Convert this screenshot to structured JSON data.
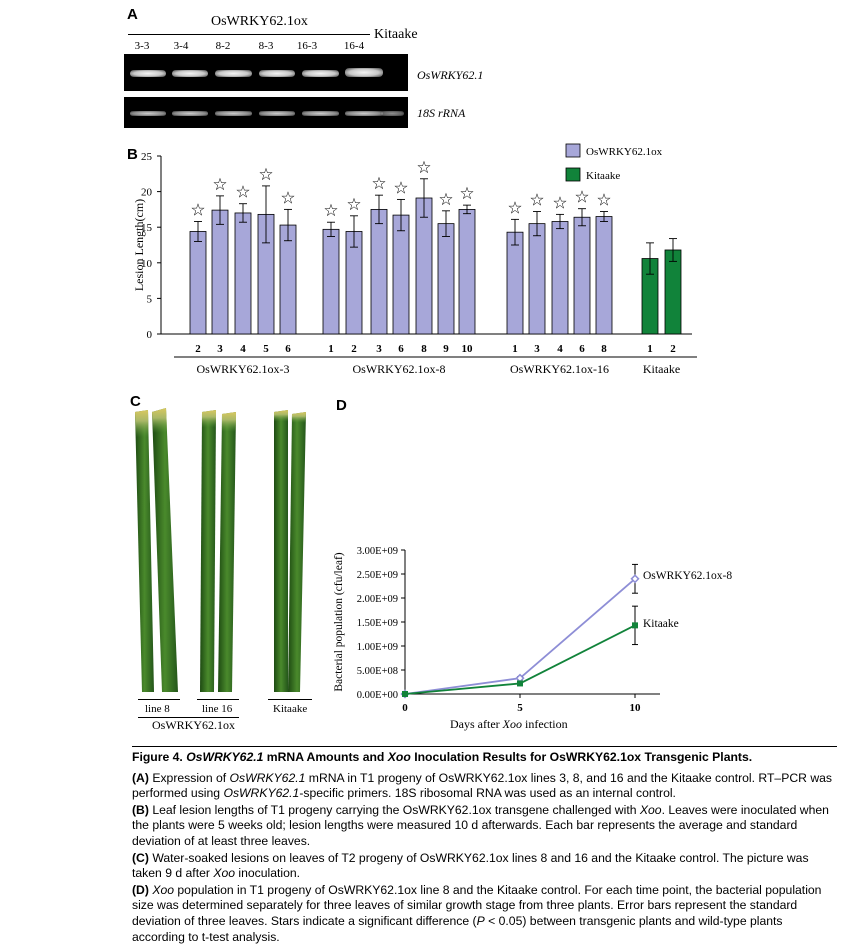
{
  "panels": {
    "a": "A",
    "b": "B",
    "c": "C",
    "d": "D"
  },
  "panel_a": {
    "group_label": "OsWRKY62.1ox",
    "lanes": [
      "3-3",
      "3-4",
      "8-2",
      "8-3",
      "16-3",
      "16-4"
    ],
    "control_label": "Kitaake",
    "gene_label": "OsWRKY62.1",
    "control_rna_label": "18S rRNA"
  },
  "panel_b": {
    "ylabel": "Lesion Length(cm)",
    "yticks": [
      "0",
      "5",
      "10",
      "15",
      "20",
      "25"
    ],
    "legend": [
      {
        "name": "OsWRKY62.1ox",
        "color": "#a7a7d9"
      },
      {
        "name": "Kitaake",
        "color": "#11833a"
      }
    ],
    "groups": [
      {
        "name": "OsWRKY62.1ox-3",
        "lines": [
          "2",
          "3",
          "4",
          "5",
          "6"
        ]
      },
      {
        "name": "OsWRKY62.1ox-8",
        "lines": [
          "1",
          "2",
          "3",
          "6",
          "8",
          "9",
          "10"
        ]
      },
      {
        "name": "OsWRKY62.1ox-16",
        "lines": [
          "1",
          "3",
          "4",
          "6",
          "8"
        ]
      },
      {
        "name": "Kitaake",
        "lines": [
          "1",
          "2"
        ]
      }
    ],
    "star_glyph": "☆"
  },
  "chart_data": [
    {
      "type": "bar",
      "title": "",
      "xlabel": "",
      "ylabel": "Lesion Length(cm)",
      "ylim": [
        0,
        25
      ],
      "categories": [
        "3-2",
        "3-3",
        "3-4",
        "3-5",
        "3-6",
        "8-1",
        "8-2",
        "8-3",
        "8-6",
        "8-8",
        "8-9",
        "8-10",
        "16-1",
        "16-3",
        "16-4",
        "16-6",
        "16-8",
        "Kitaake-1",
        "Kitaake-2"
      ],
      "series": [
        {
          "name": "OsWRKY62.1ox",
          "color": "#a7a7d9",
          "values": [
            14.4,
            17.4,
            17.0,
            16.8,
            15.3,
            14.7,
            14.4,
            17.5,
            16.7,
            19.1,
            15.5,
            17.5,
            14.3,
            15.5,
            15.8,
            16.4,
            16.5,
            null,
            null
          ],
          "errors": [
            1.4,
            2.0,
            1.3,
            4.0,
            2.2,
            1.0,
            2.2,
            2.0,
            2.2,
            2.7,
            1.8,
            0.6,
            1.8,
            1.7,
            1.0,
            1.2,
            0.7,
            null,
            null
          ],
          "significant": [
            true,
            true,
            true,
            true,
            true,
            true,
            true,
            true,
            true,
            true,
            true,
            true,
            true,
            true,
            true,
            true,
            true,
            false,
            false
          ]
        },
        {
          "name": "Kitaake",
          "color": "#11833a",
          "values": [
            null,
            null,
            null,
            null,
            null,
            null,
            null,
            null,
            null,
            null,
            null,
            null,
            null,
            null,
            null,
            null,
            null,
            10.6,
            11.8
          ],
          "errors": [
            null,
            null,
            null,
            null,
            null,
            null,
            null,
            null,
            null,
            null,
            null,
            null,
            null,
            null,
            null,
            null,
            null,
            2.2,
            1.6
          ]
        }
      ],
      "grid": false,
      "legend_position": "top-right"
    },
    {
      "type": "line",
      "title": "",
      "xlabel": "Days after Xoo infection",
      "ylabel": "Bacterial population (cfu/leaf)",
      "x": [
        0,
        5,
        10
      ],
      "xticks": [
        "0",
        "5",
        "10"
      ],
      "yticks": [
        "0.00E+00",
        "5.00E+08",
        "1.00E+09",
        "1.50E+09",
        "2.00E+09",
        "2.50E+09",
        "3.00E+09"
      ],
      "ylim": [
        0,
        3000000000
      ],
      "series": [
        {
          "name": "OsWRKY62.1ox-8",
          "color": "#8e8ed6",
          "values": [
            0,
            330000000,
            2400000000
          ],
          "errors": [
            0,
            30000000,
            300000000
          ]
        },
        {
          "name": "Kitaake",
          "color": "#11833a",
          "values": [
            0,
            220000000,
            1430000000
          ],
          "errors": [
            0,
            30000000,
            400000000
          ]
        }
      ],
      "grid": false,
      "legend_position": "end-of-line labels"
    }
  ],
  "panel_c": {
    "labels": [
      "line 8",
      "line 16",
      "Kitaake"
    ],
    "group_label": "OsWRKY62.1ox"
  },
  "panel_d": {
    "xlabel_prefix": "Days after ",
    "xlabel_italic": "Xoo",
    "xlabel_suffix": " infection"
  },
  "caption": {
    "figure_title_bold": "Figure 4.",
    "figure_title_italic1": "OsWRKY62.1",
    "figure_title_mid": "mRNA Amounts and",
    "figure_title_italic2": "Xoo",
    "figure_title_end": "Inoculation Results for OsWRKY62.1ox Transgenic Plants.",
    "a_label": "(A)",
    "a_text1": "Expression of",
    "a_italic1": "OsWRKY62.1",
    "a_text2": "mRNA in T1 progeny of OsWRKY62.1ox lines 3, 8, and 16 and the Kitaake control. RT–PCR was performed using",
    "a_italic2": "OsWRKY62.1",
    "a_text3": "-specific primers. 18S ribosomal RNA was used as an internal control.",
    "b_label": "(B)",
    "b_text1": "Leaf lesion lengths of T1 progeny carrying the OsWRKY62.1ox transgene challenged with",
    "b_italic": "Xoo",
    "b_text2": ". Leaves were inoculated when the plants were 5 weeks old; lesion lengths were measured 10 d afterwards. Each bar represents the average and standard deviation of at least three leaves.",
    "c_label": "(C)",
    "c_text": "Water-soaked lesions on leaves of T2 progeny of OsWRKY62.1ox lines 8 and 16 and the Kitaake control. The picture was taken 9 d after",
    "c_italic": "Xoo",
    "c_text2": "inoculation.",
    "d_label": "(D)",
    "d_italic": "Xoo",
    "d_text1": "population in T1 progeny of OsWRKY62.1ox line 8 and the Kitaake control. For each time point, the bacterial population size was determined separately for three leaves of similar growth stage from three plants. Error bars represent the standard deviation of three leaves. Stars indicate a significant difference (",
    "d_p": "P",
    "d_text2": "< 0.05) between transgenic plants and wild-type plants according to t-test analysis."
  }
}
